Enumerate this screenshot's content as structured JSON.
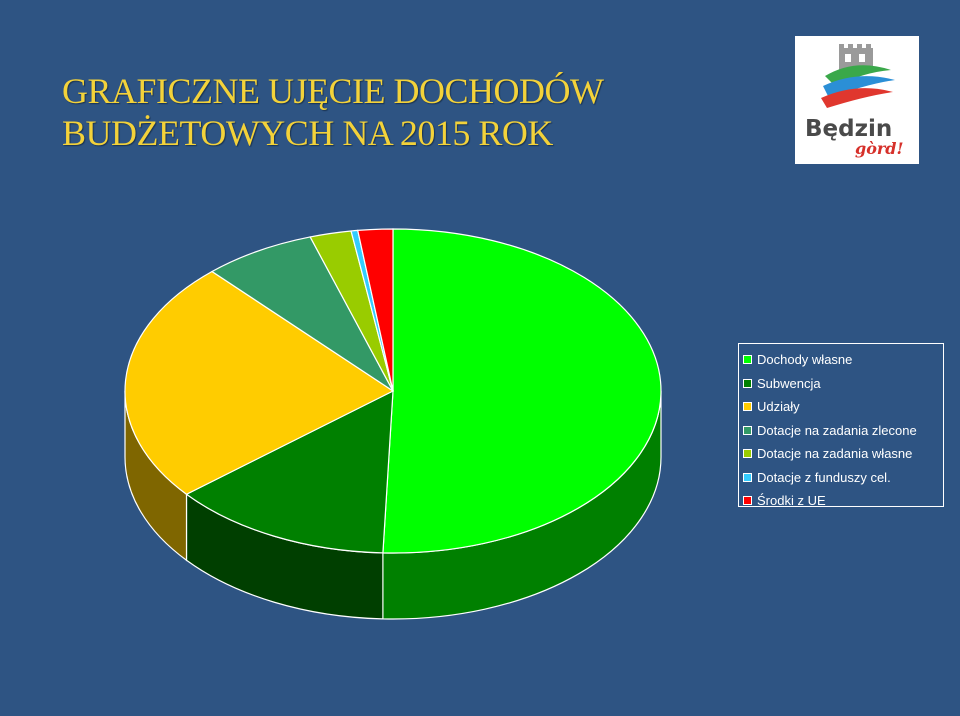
{
  "title_lines": [
    "GRAFICZNE UJĘCIE DOCHODÓW",
    "BUDŻETOWYCH NA 2015 ROK"
  ],
  "logo": {
    "line1": "Będzin",
    "line2": "gòrd!"
  },
  "colors": {
    "background": "#2e5483",
    "title": "#f3d23a"
  },
  "chart_data": {
    "type": "pie",
    "style": "3d",
    "title": "GRAFICZNE UJĘCIE DOCHODÓW BUDŻETOWYCH NA 2015 ROK",
    "legend_position": "right",
    "series": [
      {
        "name": "Dochody własne",
        "value": 50.6,
        "color": "#00ff00",
        "side": "#008000"
      },
      {
        "name": "Subwencja",
        "value": 13.4,
        "color": "#008000",
        "side": "#003f00"
      },
      {
        "name": "Udziały",
        "value": 24.2,
        "color": "#ffcc00",
        "side": "#7f6600"
      },
      {
        "name": "Dotacje na zadania zlecone",
        "value": 6.8,
        "color": "#339966",
        "side": "#1a4c33"
      },
      {
        "name": "Dotacje na zadania własne",
        "value": 2.5,
        "color": "#99cc00",
        "side": "#4c6600"
      },
      {
        "name": "Dotacje z funduszy cel.",
        "value": 0.4,
        "color": "#33ccff",
        "side": "#1a667f"
      },
      {
        "name": "Środki z UE",
        "value": 2.1,
        "color": "#ff0000",
        "side": "#800000"
      }
    ]
  }
}
